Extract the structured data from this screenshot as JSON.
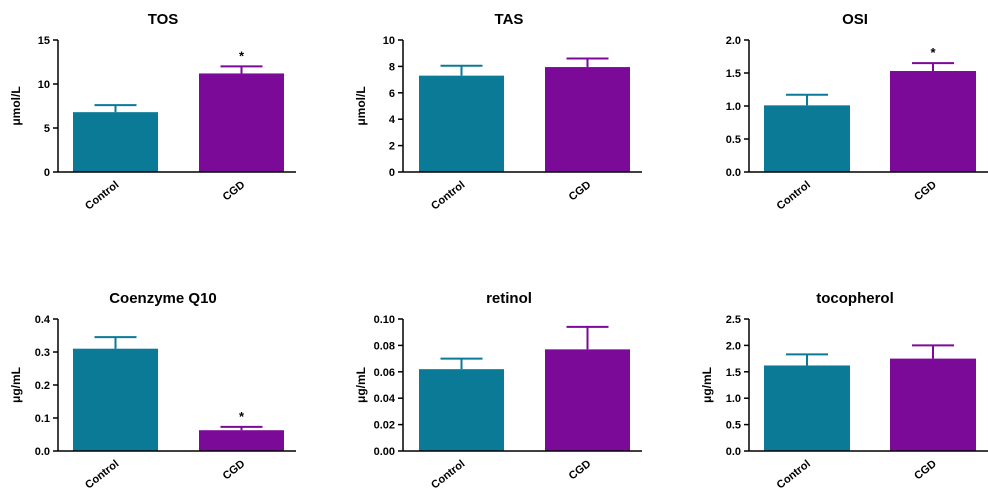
{
  "chart_data": [
    {
      "type": "bar",
      "title": "TOS",
      "ylabel": "μmol/L",
      "categories": [
        "Control",
        "CGD"
      ],
      "values": [
        6.8,
        11.2
      ],
      "errors": [
        0.8,
        0.8
      ],
      "colors": [
        "#0a7a97",
        "#7a0a97"
      ],
      "annotations": [
        "",
        "*"
      ],
      "ylim": [
        0,
        15
      ],
      "yticks": [
        "0",
        "5",
        "10",
        "15"
      ]
    },
    {
      "type": "bar",
      "title": "TAS",
      "ylabel": "μmol/L",
      "categories": [
        "Control",
        "CGD"
      ],
      "values": [
        7.3,
        7.95
      ],
      "errors": [
        0.75,
        0.65
      ],
      "colors": [
        "#0a7a97",
        "#7a0a97"
      ],
      "annotations": [
        "",
        ""
      ],
      "ylim": [
        0,
        10
      ],
      "yticks": [
        "0",
        "2",
        "4",
        "6",
        "8",
        "10"
      ]
    },
    {
      "type": "bar",
      "title": "OSI",
      "ylabel": "",
      "categories": [
        "Control",
        "CGD"
      ],
      "values": [
        1.01,
        1.53
      ],
      "errors": [
        0.16,
        0.12
      ],
      "colors": [
        "#0a7a97",
        "#7a0a97"
      ],
      "annotations": [
        "",
        "*"
      ],
      "ylim": [
        0,
        2
      ],
      "yticks": [
        "0.0",
        "0.5",
        "1.0",
        "1.5",
        "2.0"
      ]
    },
    {
      "type": "bar",
      "title": "Coenzyme Q10",
      "ylabel": "μg/mL",
      "categories": [
        "Control",
        "CGD"
      ],
      "values": [
        0.31,
        0.063
      ],
      "errors": [
        0.035,
        0.01
      ],
      "colors": [
        "#0a7a97",
        "#7a0a97"
      ],
      "annotations": [
        "",
        "*"
      ],
      "ylim": [
        0,
        0.4
      ],
      "yticks": [
        "0.0",
        "0.1",
        "0.2",
        "0.3",
        "0.4"
      ]
    },
    {
      "type": "bar",
      "title": "retinol",
      "ylabel": "μg/mL",
      "categories": [
        "Control",
        "CGD"
      ],
      "values": [
        0.062,
        0.077
      ],
      "errors": [
        0.008,
        0.017
      ],
      "colors": [
        "#0a7a97",
        "#7a0a97"
      ],
      "annotations": [
        "",
        ""
      ],
      "ylim": [
        0,
        0.1
      ],
      "yticks": [
        "0.00",
        "0.02",
        "0.04",
        "0.06",
        "0.08",
        "0.10"
      ]
    },
    {
      "type": "bar",
      "title": "tocopherol",
      "ylabel": "μg/mL",
      "categories": [
        "Control",
        "CGD"
      ],
      "values": [
        1.62,
        1.75
      ],
      "errors": [
        0.21,
        0.25
      ],
      "colors": [
        "#0a7a97",
        "#7a0a97"
      ],
      "annotations": [
        "",
        ""
      ],
      "ylim": [
        0,
        2.5
      ],
      "yticks": [
        "0.0",
        "0.5",
        "1.0",
        "1.5",
        "2.0",
        "2.5"
      ]
    }
  ]
}
